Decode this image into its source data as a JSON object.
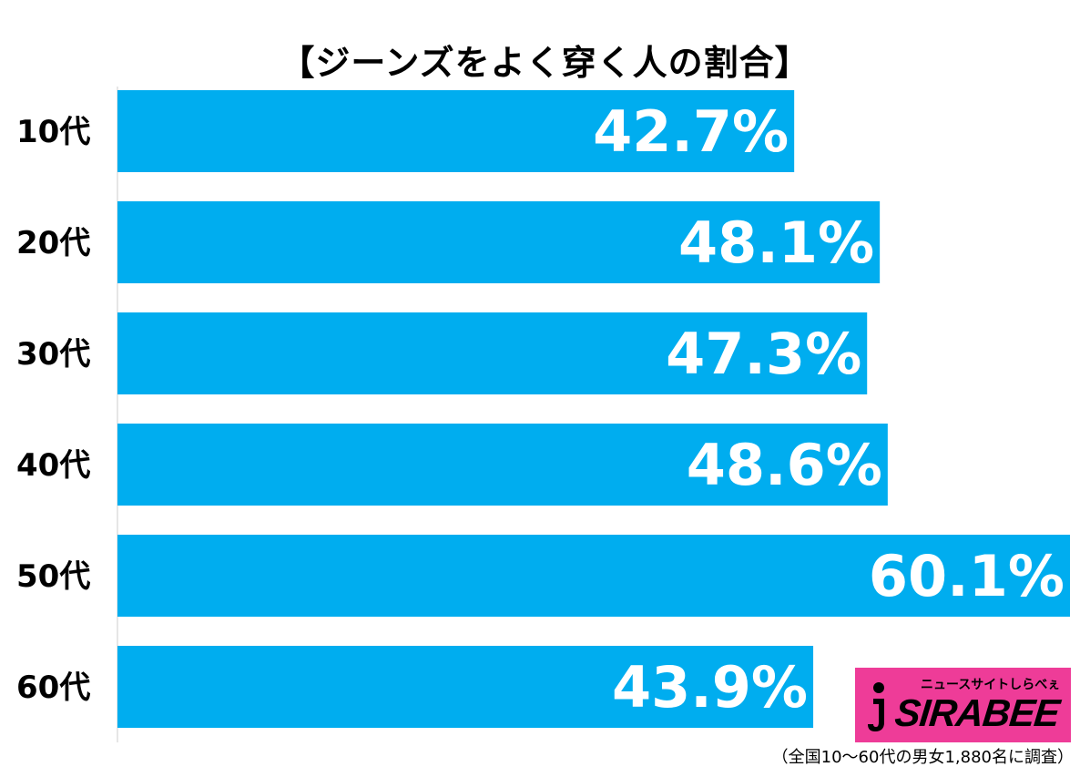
{
  "chart_data": {
    "type": "bar",
    "orientation": "horizontal",
    "title": "【ジーンズをよく穿く人の割合】",
    "categories": [
      "10代",
      "20代",
      "30代",
      "40代",
      "50代",
      "60代"
    ],
    "values": [
      42.7,
      48.1,
      47.3,
      48.6,
      60.1,
      43.9
    ],
    "value_labels": [
      "42.7%",
      "48.1%",
      "47.3%",
      "48.6%",
      "60.1%",
      "43.9%"
    ],
    "xlim": [
      0,
      60.1
    ],
    "bar_color": "#00adef",
    "grid": false,
    "legend": false
  },
  "logo": {
    "word": "SIRABEE",
    "tagline": "ニュースサイトしらべぇ",
    "color": "#ee3c98"
  },
  "footnote": "（全国10～60代の男女1,880名に調査）"
}
